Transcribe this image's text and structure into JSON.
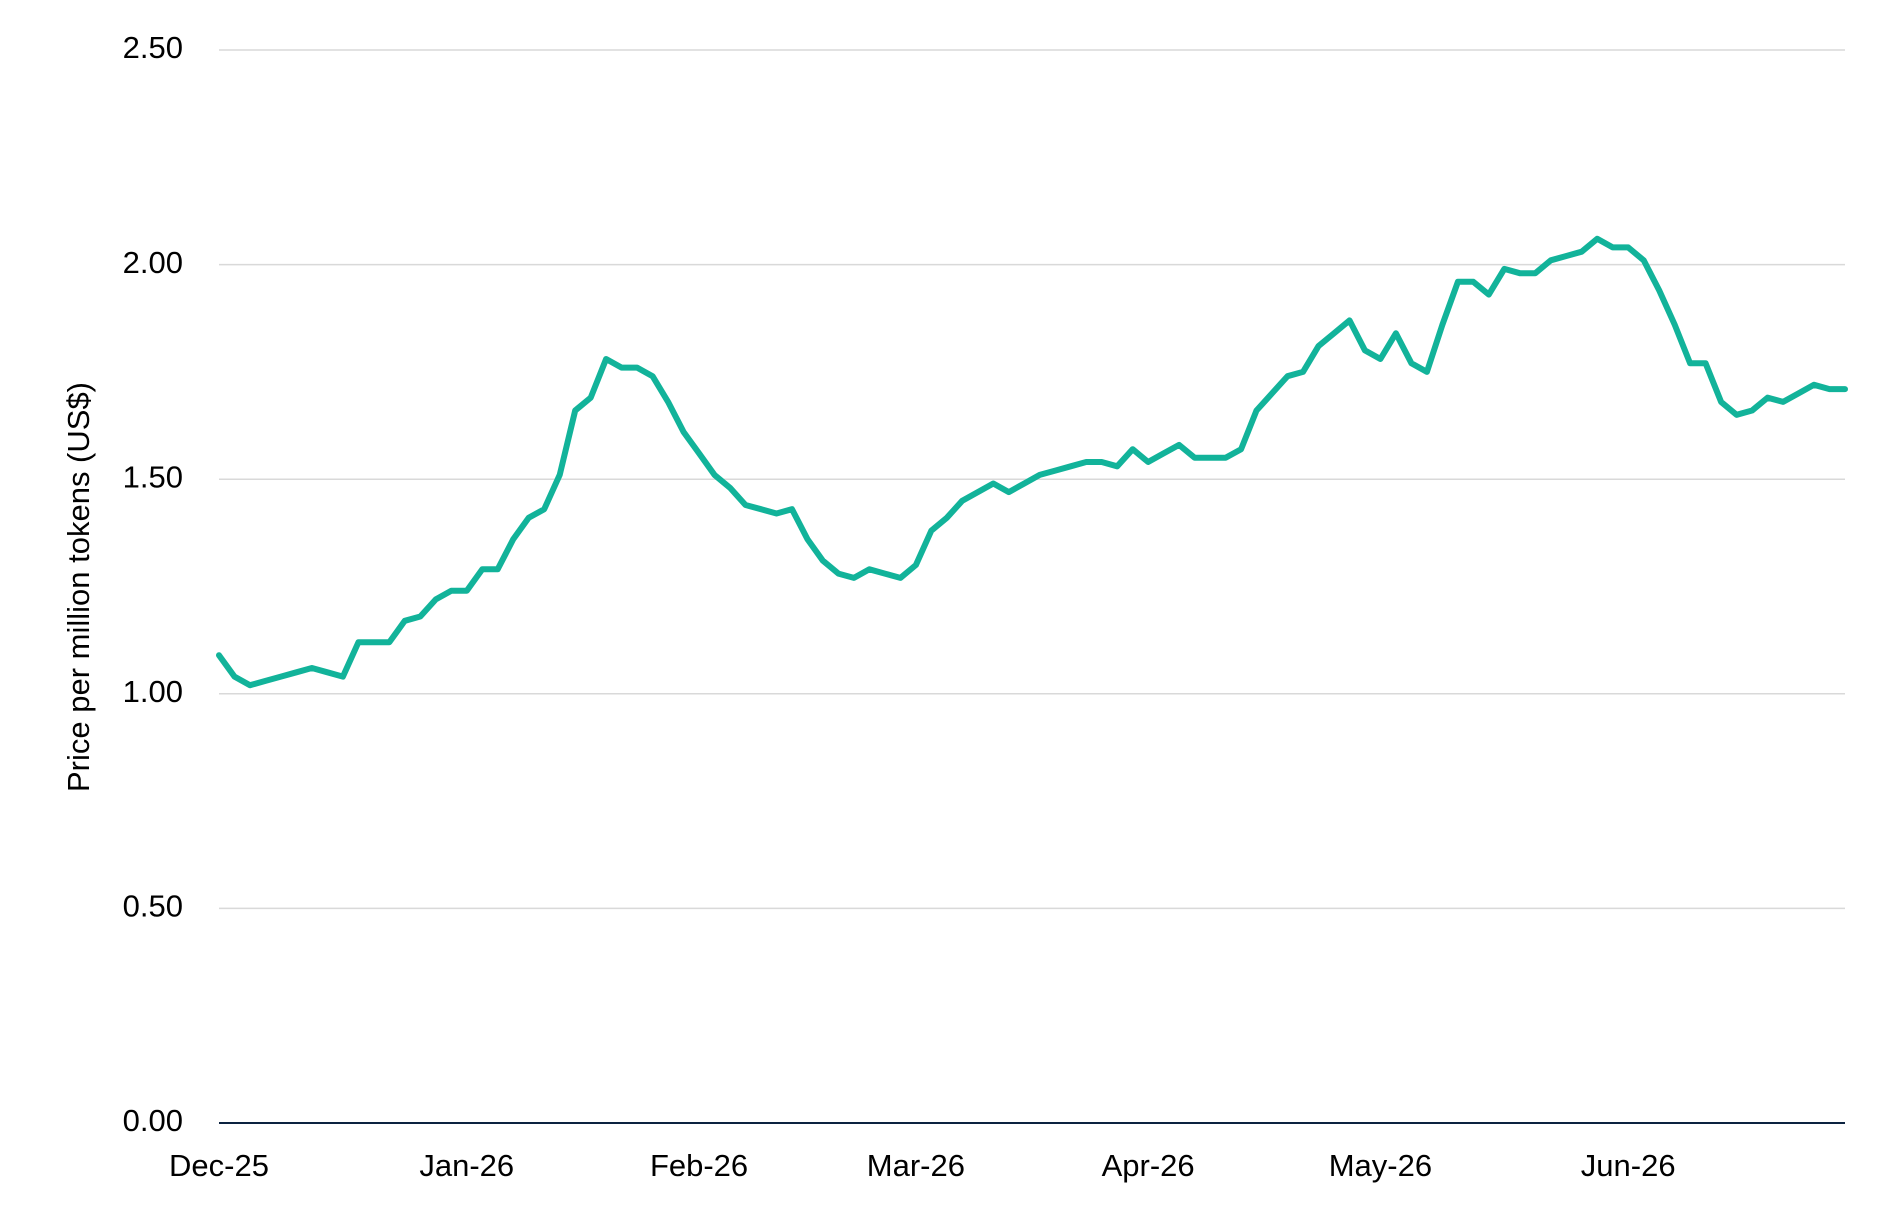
{
  "chart_data": {
    "type": "line",
    "y_label": "Price per million tokens (US$)",
    "categories": [
      "Dec-25",
      null,
      null,
      null,
      null,
      null,
      null,
      null,
      null,
      null,
      null,
      null,
      null,
      null,
      null,
      null,
      "Jan-26",
      null,
      null,
      null,
      null,
      null,
      null,
      null,
      null,
      null,
      null,
      null,
      null,
      null,
      null,
      "Feb-26",
      null,
      null,
      null,
      null,
      null,
      null,
      null,
      null,
      null,
      null,
      null,
      null,
      null,
      "Mar-26",
      null,
      null,
      null,
      null,
      null,
      null,
      null,
      null,
      null,
      null,
      null,
      null,
      null,
      null,
      "Apr-26",
      null,
      null,
      null,
      null,
      null,
      null,
      null,
      null,
      null,
      null,
      null,
      null,
      null,
      null,
      "May-26",
      null,
      null,
      null,
      null,
      null,
      null,
      null,
      null,
      null,
      null,
      null,
      null,
      null,
      null,
      null,
      "Jun-26",
      null,
      null,
      null,
      null,
      null,
      null,
      null,
      null,
      null,
      null,
      null,
      null,
      null,
      null
    ],
    "values": [
      1.09,
      1.04,
      1.02,
      1.03,
      1.04,
      1.05,
      1.06,
      1.05,
      1.04,
      1.12,
      1.12,
      1.12,
      1.17,
      1.18,
      1.22,
      1.24,
      1.24,
      1.29,
      1.29,
      1.36,
      1.41,
      1.43,
      1.51,
      1.66,
      1.69,
      1.78,
      1.76,
      1.76,
      1.74,
      1.68,
      1.61,
      1.56,
      1.51,
      1.48,
      1.44,
      1.43,
      1.42,
      1.43,
      1.36,
      1.31,
      1.28,
      1.27,
      1.29,
      1.28,
      1.27,
      1.3,
      1.38,
      1.41,
      1.45,
      1.47,
      1.49,
      1.47,
      1.49,
      1.51,
      1.52,
      1.53,
      1.54,
      1.54,
      1.53,
      1.57,
      1.54,
      1.56,
      1.58,
      1.55,
      1.55,
      1.55,
      1.57,
      1.66,
      1.7,
      1.74,
      1.75,
      1.81,
      1.84,
      1.87,
      1.8,
      1.78,
      1.84,
      1.77,
      1.75,
      1.86,
      1.96,
      1.96,
      1.93,
      1.99,
      1.98,
      1.98,
      2.01,
      2.02,
      2.03,
      2.06,
      2.04,
      2.04,
      2.01,
      1.94,
      1.86,
      1.77,
      1.77,
      1.68,
      1.65,
      1.66,
      1.69,
      1.68,
      1.7,
      1.72,
      1.71,
      1.71
    ],
    "color": "#12b39a",
    "ylim": [
      0,
      2.5
    ],
    "yticks": [
      {
        "value": 0,
        "label": "0.00"
      },
      {
        "value": 0.5,
        "label": "0.50"
      },
      {
        "value": 1,
        "label": "1.00"
      },
      {
        "value": 1.5,
        "label": "1.50"
      },
      {
        "value": 2,
        "label": "2.00"
      },
      {
        "value": 2.5,
        "label": "2.50"
      }
    ],
    "grid": true
  }
}
